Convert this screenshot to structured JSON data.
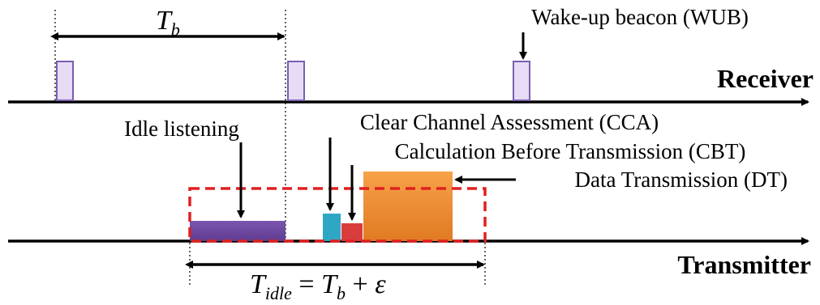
{
  "labels": {
    "receiver": "Receiver",
    "transmitter": "Transmitter",
    "tb_main": "T",
    "tb_sub": "b",
    "wub": "Wake-up beacon (WUB)",
    "idle_listening": "Idle listening",
    "cca": "Clear Channel Assessment (CCA)",
    "cbt": "Calculation Before Transmission (CBT)",
    "dt": "Data Transmission (DT)",
    "tidle_main": "T",
    "tidle_sub": "idle",
    "tidle_eq": " = ",
    "tidle_tb_main": "T",
    "tidle_tb_sub": "b",
    "tidle_plus": " + ",
    "epsilon": "ε"
  },
  "colors": {
    "beacon_fill": "#e6dcf5",
    "beacon_stroke": "#7a5fae",
    "idle_fill": "#6f4aa1",
    "cca_fill": "#2fa7c4",
    "cbt_fill": "#d93c3c",
    "dt_fill": "#f39236",
    "dashed_box": "#e02020"
  }
}
